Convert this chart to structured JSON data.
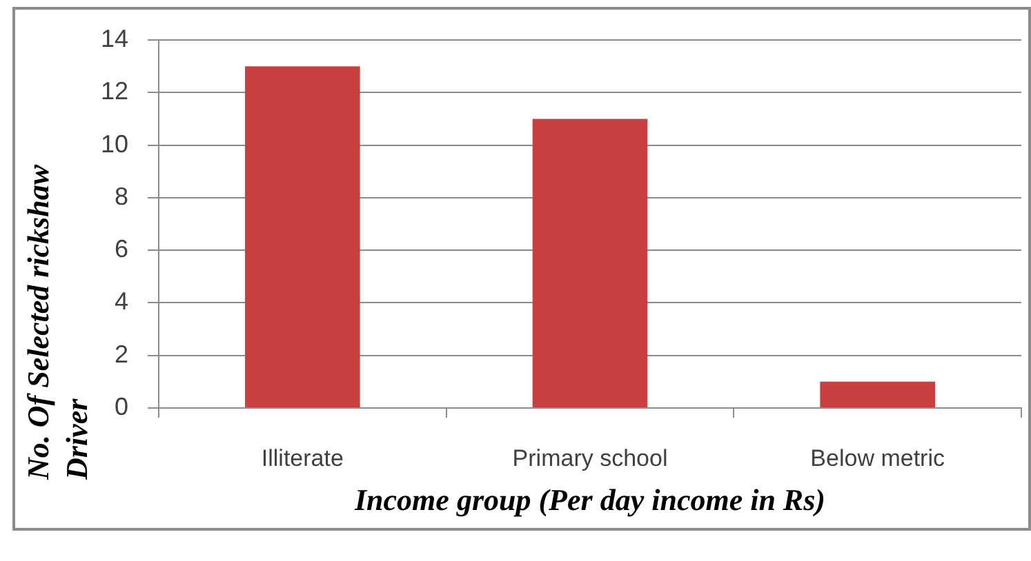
{
  "chart_data": {
    "type": "bar",
    "xlabel": "Income group (Per day income in Rs)",
    "ylabel": "No. Of Selected rickshaw Driver",
    "categories": [
      "Illiterate",
      "Primary school",
      "Below metric"
    ],
    "values": [
      13,
      11,
      1
    ],
    "color": "#c94040",
    "ylim": [
      0,
      14
    ],
    "yticks": [
      0,
      2,
      4,
      6,
      8,
      10,
      12,
      14
    ],
    "grid": "y"
  }
}
